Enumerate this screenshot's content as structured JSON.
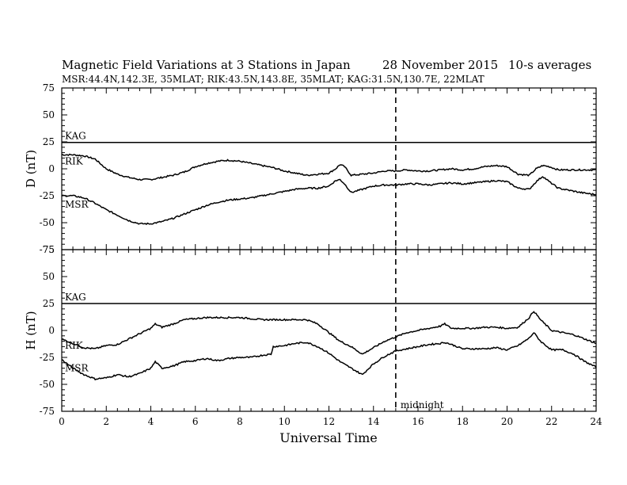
{
  "header": {
    "title": "Magnetic Field Variations at 3 Stations in Japan",
    "date": "28 November 2015",
    "averaging": "10-s averages",
    "stations": "MSR:44.4N,142.3E, 35MLAT;  RIK:43.5N,143.8E, 35MLAT;  KAG:31.5N,130.7E, 22MLAT"
  },
  "chart_data": [
    {
      "type": "line",
      "ylabel": "D (nT)",
      "xlabel": "",
      "xlim": [
        0,
        24
      ],
      "ylim": [
        -75,
        75
      ],
      "yticks": [
        75,
        50,
        25,
        0,
        -25,
        -50,
        -75
      ],
      "grid": false,
      "series": [
        {
          "name": "KAG",
          "x": [
            0,
            24
          ],
          "y": [
            24.5,
            24.5
          ]
        },
        {
          "name": "RIK",
          "x": [
            0,
            0.5,
            1,
            1.5,
            2,
            2.5,
            3,
            3.5,
            4,
            4.5,
            5,
            5.5,
            6,
            6.5,
            7,
            7.5,
            8,
            8.5,
            9,
            9.5,
            10,
            10.5,
            11,
            11.5,
            12,
            12.3,
            12.5,
            12.7,
            13,
            13.5,
            14,
            14.5,
            15,
            15.5,
            16,
            16.5,
            17,
            17.5,
            18,
            18.5,
            19,
            19.5,
            20,
            20.5,
            21,
            21.3,
            21.6,
            21.9,
            22.3,
            22.8,
            23.3,
            24
          ],
          "y": [
            13,
            13,
            12,
            9,
            0,
            -5,
            -8,
            -10,
            -10,
            -8,
            -6,
            -3,
            2,
            5,
            7,
            8,
            7,
            5,
            3,
            1,
            -2,
            -4,
            -6,
            -5,
            -4,
            0,
            4,
            2,
            -6,
            -5,
            -4,
            -2,
            -2,
            -1,
            -2,
            -2,
            -1,
            0,
            -1,
            0,
            2,
            3,
            2,
            -5,
            -6,
            0,
            3,
            2,
            -1,
            -1,
            -1,
            -1
          ]
        },
        {
          "name": "MSR",
          "x": [
            0,
            0.5,
            1,
            1.5,
            2,
            2.5,
            3,
            3.5,
            4,
            4.5,
            5,
            5.5,
            6,
            6.5,
            7,
            7.5,
            8,
            8.5,
            9,
            9.5,
            10,
            10.5,
            11,
            11.5,
            12,
            12.3,
            12.5,
            12.7,
            13,
            13.5,
            14,
            14.5,
            15,
            15.5,
            16,
            16.5,
            17,
            17.5,
            18,
            18.5,
            19,
            19.5,
            20,
            20.5,
            21,
            21.3,
            21.6,
            21.9,
            22.3,
            22.8,
            23.3,
            24
          ],
          "y": [
            -25,
            -25,
            -27,
            -32,
            -38,
            -43,
            -48,
            -51,
            -51,
            -49,
            -46,
            -42,
            -38,
            -34,
            -31,
            -29,
            -28,
            -27,
            -25,
            -23,
            -21,
            -19,
            -18,
            -18,
            -16,
            -11,
            -10,
            -14,
            -22,
            -19,
            -16,
            -15,
            -15,
            -14,
            -14,
            -15,
            -14,
            -13,
            -14,
            -13,
            -12,
            -11,
            -12,
            -18,
            -19,
            -12,
            -7,
            -12,
            -18,
            -20,
            -22,
            -24
          ]
        }
      ]
    },
    {
      "type": "line",
      "ylabel": "H (nT)",
      "xlabel": "Universal Time",
      "xlim": [
        0,
        24
      ],
      "ylim": [
        -75,
        75
      ],
      "xticks": [
        0,
        2,
        4,
        6,
        8,
        10,
        12,
        14,
        16,
        18,
        20,
        22,
        24
      ],
      "yticks": [
        75,
        50,
        25,
        0,
        -25,
        -50,
        -75
      ],
      "grid": false,
      "series": [
        {
          "name": "KAG",
          "x": [
            0,
            24
          ],
          "y": [
            25,
            25
          ]
        },
        {
          "name": "RIK",
          "x": [
            0,
            0.5,
            1,
            1.5,
            2,
            2.5,
            3,
            3.5,
            4,
            4.2,
            4.5,
            5,
            5.5,
            6,
            6.5,
            7,
            7.5,
            8,
            8.5,
            9,
            9.5,
            10,
            10.5,
            11,
            11.5,
            12,
            12.5,
            13,
            13.5,
            14,
            14.5,
            15,
            15.5,
            16,
            16.5,
            17,
            17.2,
            17.5,
            18,
            18.5,
            19,
            19.5,
            20,
            20.5,
            21,
            21.2,
            21.5,
            22,
            22.5,
            23,
            23.5,
            24
          ],
          "y": [
            -8,
            -12,
            -16,
            -17,
            -14,
            -13,
            -8,
            -3,
            2,
            6,
            3,
            6,
            10,
            11,
            12,
            12,
            12,
            12,
            11,
            10,
            10,
            10,
            10,
            10,
            6,
            -2,
            -10,
            -15,
            -22,
            -16,
            -10,
            -6,
            -2,
            0,
            2,
            4,
            6,
            2,
            2,
            2,
            3,
            3,
            2,
            3,
            12,
            18,
            10,
            0,
            -2,
            -4,
            -8,
            -12
          ]
        },
        {
          "name": "MSR",
          "x": [
            0,
            0.5,
            1,
            1.5,
            2,
            2.5,
            3,
            3.5,
            4,
            4.2,
            4.5,
            5,
            5.5,
            6,
            6.5,
            7,
            7.5,
            8,
            8.5,
            9,
            9.4,
            9.5,
            10,
            10.5,
            11,
            11.5,
            12,
            12.5,
            13,
            13.5,
            14,
            14.5,
            15,
            15.5,
            16,
            16.5,
            17,
            17.2,
            17.5,
            18,
            18.5,
            19,
            19.5,
            20,
            20.5,
            21,
            21.2,
            21.5,
            22,
            22.5,
            23,
            23.5,
            24
          ],
          "y": [
            -27,
            -35,
            -41,
            -45,
            -44,
            -41,
            -43,
            -40,
            -35,
            -29,
            -35,
            -33,
            -29,
            -28,
            -26,
            -28,
            -26,
            -25,
            -25,
            -23,
            -22,
            -15,
            -14,
            -12,
            -11,
            -15,
            -21,
            -29,
            -35,
            -41,
            -31,
            -24,
            -19,
            -17,
            -15,
            -13,
            -12,
            -11,
            -13,
            -17,
            -17,
            -17,
            -16,
            -18,
            -14,
            -7,
            -2,
            -10,
            -18,
            -18,
            -22,
            -29,
            -34
          ]
        }
      ],
      "annotations": [
        {
          "text": "midnight",
          "x": 15
        }
      ]
    }
  ]
}
